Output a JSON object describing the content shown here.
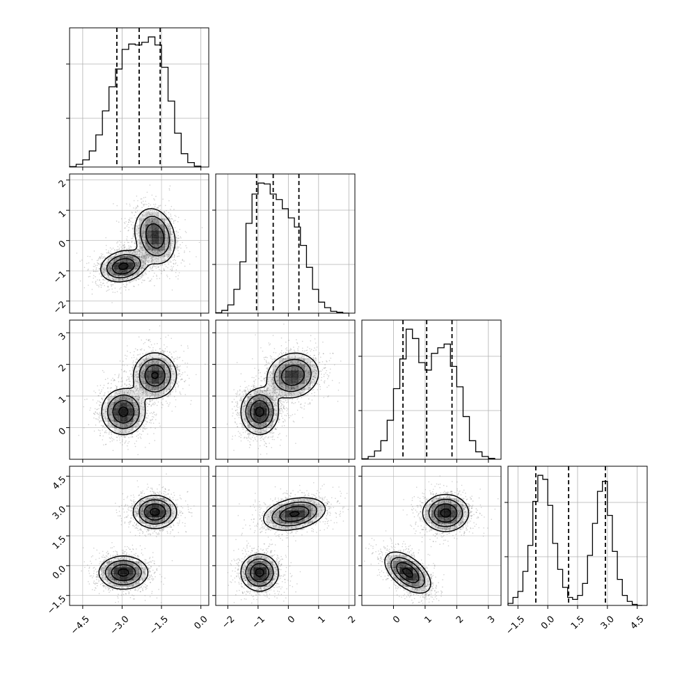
{
  "chart_data": {
    "type": "corner",
    "n_params": 4,
    "grid": true,
    "colors": {
      "line": "#000000",
      "grid": "#b0b0b0",
      "contour_fill": "#4d4d4d"
    },
    "ticks": {
      "p0": {
        "values": [
          -4.5,
          -3.0,
          -1.5,
          0.0
        ],
        "labels": [
          "−4.5",
          "−3.0",
          "−1.5",
          "0.0"
        ]
      },
      "p1": {
        "values": [
          -2,
          -1,
          0,
          1,
          2
        ],
        "labels": [
          "−2",
          "−1",
          "0",
          "1",
          "2"
        ]
      },
      "p2": {
        "values": [
          0,
          1,
          2,
          3
        ],
        "labels": [
          "0",
          "1",
          "2",
          "3"
        ]
      },
      "p3": {
        "values": [
          -1.5,
          0.0,
          1.5,
          3.0,
          4.5
        ],
        "labels": [
          "−1.5",
          "0.0",
          "1.5",
          "3.0",
          "4.5"
        ]
      }
    },
    "ranges": {
      "p0": [
        -5.0,
        0.3
      ],
      "p1": [
        -2.4,
        2.2
      ],
      "p2": [
        -1.0,
        3.4
      ],
      "p3": [
        -2.0,
        5.0
      ]
    },
    "marginals": [
      {
        "param": "p0",
        "bin_edges": [
          -5.0,
          -4.75,
          -4.5,
          -4.25,
          -4.0,
          -3.75,
          -3.5,
          -3.25,
          -3.0,
          -2.75,
          -2.5,
          -2.25,
          -2.0,
          -1.75,
          -1.5,
          -1.25,
          -1.0,
          -0.75,
          -0.5,
          -0.25,
          0.0
        ],
        "counts": [
          0.5,
          3,
          8,
          18,
          36,
          63,
          90,
          110,
          132,
          138,
          137,
          140,
          146,
          137,
          112,
          74,
          38,
          15,
          5,
          1
        ],
        "quantiles": [
          -3.2,
          -2.35,
          -1.55
        ]
      },
      {
        "param": "p1",
        "bin_edges": [
          -2.4,
          -2.2,
          -2.0,
          -1.8,
          -1.6,
          -1.4,
          -1.2,
          -1.0,
          -0.8,
          -0.6,
          -0.4,
          -0.2,
          0.0,
          0.2,
          0.4,
          0.6,
          0.8,
          1.0,
          1.2,
          1.4,
          1.6,
          1.8,
          2.0
        ],
        "counts": [
          0.5,
          3,
          9,
          26,
          56,
          98,
          130,
          142,
          141,
          130,
          124,
          114,
          104,
          94,
          74,
          50,
          26,
          12,
          6,
          2,
          1,
          0
        ],
        "quantiles": [
          -1.05,
          -0.5,
          0.35
        ]
      },
      {
        "param": "p2",
        "bin_edges": [
          -1.0,
          -0.8,
          -0.6,
          -0.4,
          -0.2,
          0.0,
          0.2,
          0.4,
          0.6,
          0.8,
          1.0,
          1.2,
          1.4,
          1.6,
          1.8,
          2.0,
          2.2,
          2.4,
          2.6,
          2.8,
          3.0,
          3.2
        ],
        "counts": [
          0.5,
          3,
          9,
          20,
          42,
          76,
          108,
          140,
          130,
          104,
          96,
          114,
          120,
          124,
          100,
          78,
          46,
          20,
          8,
          3,
          1
        ],
        "quantiles": [
          0.3,
          1.05,
          1.85
        ]
      },
      {
        "param": "p3",
        "bin_edges": [
          -2.0,
          -1.75,
          -1.5,
          -1.25,
          -1.0,
          -0.75,
          -0.5,
          -0.25,
          0.0,
          0.25,
          0.5,
          0.75,
          1.0,
          1.25,
          1.5,
          1.75,
          2.0,
          2.25,
          2.5,
          2.75,
          3.0,
          3.25,
          3.5,
          3.75,
          4.0,
          4.25,
          4.5,
          4.75
        ],
        "counts": [
          2,
          8,
          14,
          34,
          60,
          104,
          130,
          126,
          100,
          62,
          36,
          18,
          8,
          6,
          10,
          22,
          50,
          82,
          114,
          124,
          90,
          54,
          26,
          10,
          4,
          1,
          0
        ],
        "quantiles": [
          -0.6,
          1.05,
          2.9
        ]
      }
    ],
    "pairs": [
      {
        "x": "p0",
        "y": "p1",
        "modes": [
          {
            "cx": -2.95,
            "cy": -0.85,
            "sx": 0.42,
            "sy": 0.25,
            "rho": 0.2,
            "w": 1.0
          },
          {
            "cx": -1.75,
            "cy": 0.15,
            "sx": 0.38,
            "sy": 0.45,
            "rho": -0.2,
            "w": 0.9
          }
        ]
      },
      {
        "x": "p0",
        "y": "p2",
        "modes": [
          {
            "cx": -2.95,
            "cy": 0.5,
            "sx": 0.4,
            "sy": 0.35,
            "rho": 0.0,
            "w": 1.0
          },
          {
            "cx": -1.75,
            "cy": 1.65,
            "sx": 0.4,
            "sy": 0.35,
            "rho": 0.0,
            "w": 0.95
          }
        ]
      },
      {
        "x": "p1",
        "y": "p2",
        "modes": [
          {
            "cx": -0.95,
            "cy": 0.5,
            "sx": 0.3,
            "sy": 0.35,
            "rho": 0.0,
            "w": 1.0
          },
          {
            "cx": 0.15,
            "cy": 1.65,
            "sx": 0.42,
            "sy": 0.35,
            "rho": 0.1,
            "w": 0.9
          }
        ]
      },
      {
        "x": "p0",
        "y": "p3",
        "modes": [
          {
            "cx": -2.95,
            "cy": -0.35,
            "sx": 0.45,
            "sy": 0.4,
            "rho": 0.0,
            "w": 1.0
          },
          {
            "cx": -1.75,
            "cy": 2.7,
            "sx": 0.4,
            "sy": 0.4,
            "rho": 0.0,
            "w": 1.0
          }
        ]
      },
      {
        "x": "p1",
        "y": "p3",
        "modes": [
          {
            "cx": -0.95,
            "cy": -0.35,
            "sx": 0.3,
            "sy": 0.45,
            "rho": 0.0,
            "w": 1.0
          },
          {
            "cx": 0.2,
            "cy": 2.6,
            "sx": 0.5,
            "sy": 0.4,
            "rho": 0.3,
            "w": 0.95
          }
        ]
      },
      {
        "x": "p2",
        "y": "p3",
        "modes": [
          {
            "cx": 0.45,
            "cy": -0.35,
            "sx": 0.35,
            "sy": 0.5,
            "rho": -0.55,
            "w": 1.0
          },
          {
            "cx": 1.65,
            "cy": 2.65,
            "sx": 0.35,
            "sy": 0.45,
            "rho": 0.0,
            "w": 1.0
          }
        ]
      }
    ],
    "contour_levels": [
      0.12,
      0.32,
      0.6,
      0.9
    ]
  }
}
